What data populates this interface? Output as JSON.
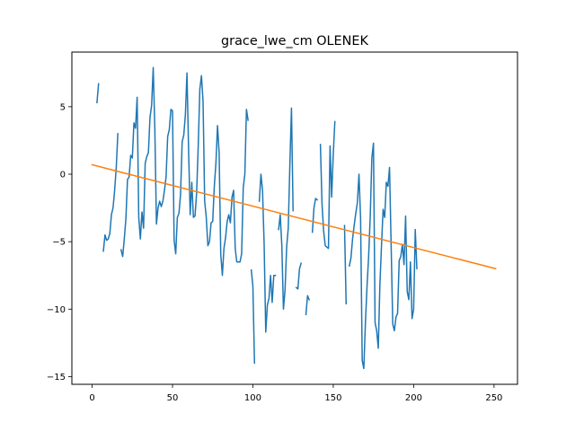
{
  "chart_data": {
    "type": "line",
    "title": "grace_lwe_cm OLENEK",
    "xlabel": "",
    "ylabel": "",
    "xlim": [
      -12.6,
      264.6
    ],
    "ylim": [
      -15.57,
      9.05
    ],
    "xticks": [
      0,
      50,
      100,
      150,
      200,
      250
    ],
    "yticks": [
      -15,
      -10,
      -5,
      0,
      5
    ],
    "ytick_labels": [
      "−15",
      "−10",
      "−5",
      "0",
      "5"
    ],
    "grid": false,
    "legend": "none",
    "series": [
      {
        "color": "#1f77b4",
        "points": [
          [
            3,
            5.3
          ],
          [
            4,
            6.7
          ],
          null,
          [
            7,
            -5.7
          ],
          [
            8,
            -4.5
          ],
          [
            9,
            -4.9
          ],
          [
            10,
            -4.8
          ],
          [
            11,
            -4.4
          ],
          [
            12,
            -3.0
          ],
          [
            13,
            -2.5
          ],
          [
            14,
            -1.2
          ],
          [
            15,
            0.5
          ],
          [
            16,
            3.0
          ],
          null,
          [
            18,
            -5.6
          ],
          [
            19,
            -6.1
          ],
          [
            20,
            -4.8
          ],
          [
            21,
            -3.3
          ],
          [
            22,
            -0.4
          ],
          [
            23,
            -0.2
          ],
          [
            24,
            1.4
          ],
          [
            25,
            1.2
          ],
          [
            26,
            3.8
          ],
          [
            27,
            3.4
          ],
          [
            28,
            5.7
          ],
          [
            29,
            -3.2
          ],
          [
            30,
            -4.8
          ],
          [
            31,
            -2.8
          ],
          [
            32,
            -4.0
          ],
          [
            33,
            0.8
          ],
          [
            34,
            1.3
          ],
          [
            35,
            1.6
          ],
          [
            36,
            4.2
          ],
          [
            37,
            5.1
          ],
          [
            38,
            7.9
          ],
          [
            39,
            3.4
          ],
          [
            40,
            -3.7
          ],
          [
            41,
            -2.5
          ],
          [
            42,
            -2.0
          ],
          [
            43,
            -2.4
          ],
          [
            44,
            -2.0
          ],
          [
            45,
            -1.2
          ],
          [
            46,
            -0.2
          ],
          [
            47,
            2.8
          ],
          [
            48,
            3.3
          ],
          [
            49,
            4.8
          ],
          [
            50,
            4.7
          ],
          [
            51,
            -4.9
          ],
          [
            52,
            -5.9
          ],
          [
            53,
            -3.2
          ],
          [
            54,
            -2.9
          ],
          [
            55,
            -1.5
          ],
          [
            56,
            2.4
          ],
          [
            57,
            2.9
          ],
          [
            58,
            4.4
          ],
          [
            59,
            7.5
          ],
          [
            60,
            1.8
          ],
          [
            61,
            -3.0
          ],
          [
            62,
            -0.6
          ],
          [
            63,
            -3.2
          ],
          [
            64,
            -3.1
          ],
          [
            65,
            -1.4
          ],
          [
            66,
            2.1
          ],
          [
            67,
            6.3
          ],
          [
            68,
            7.3
          ],
          [
            69,
            5.4
          ],
          [
            70,
            -2.0
          ],
          [
            71,
            -3.2
          ],
          [
            72,
            -5.3
          ],
          [
            73,
            -5.0
          ],
          [
            74,
            -3.6
          ],
          [
            75,
            -3.5
          ],
          [
            76,
            -0.9
          ],
          [
            77,
            0.8
          ],
          [
            78,
            3.6
          ],
          [
            79,
            1.6
          ],
          [
            80,
            -5.9
          ],
          [
            81,
            -7.5
          ],
          [
            82,
            -5.5
          ],
          [
            83,
            -4.7
          ],
          [
            84,
            -3.5
          ],
          [
            85,
            -3.0
          ],
          [
            86,
            -3.6
          ],
          [
            87,
            -1.7
          ],
          [
            88,
            -1.2
          ],
          [
            89,
            -5.5
          ],
          [
            90,
            -6.5
          ],
          [
            91,
            -6.5
          ],
          [
            92,
            -6.5
          ],
          [
            93,
            -5.9
          ],
          [
            94,
            -1.0
          ],
          [
            95,
            0.0
          ],
          [
            96,
            4.8
          ],
          [
            97,
            4.0
          ],
          null,
          [
            99,
            -7.1
          ],
          [
            100,
            -8.3
          ],
          [
            101,
            -14.0
          ],
          null,
          [
            104,
            -2.0
          ],
          [
            105,
            0.0
          ],
          [
            106,
            -1.2
          ],
          [
            107,
            -5.2
          ],
          [
            108,
            -11.7
          ],
          [
            109,
            -9.7
          ],
          [
            110,
            -9.2
          ],
          [
            111,
            -7.5
          ],
          [
            112,
            -9.5
          ],
          [
            113,
            -7.5
          ],
          [
            114,
            -7.5
          ],
          null,
          [
            116,
            -4.1
          ],
          [
            117,
            -3.0
          ],
          [
            118,
            -5.3
          ],
          [
            119,
            -10.0
          ],
          [
            120,
            -8.6
          ],
          [
            121,
            -5.4
          ],
          [
            122,
            -4.0
          ],
          [
            123,
            0.7
          ],
          [
            124,
            4.9
          ],
          [
            125,
            -2.7
          ],
          null,
          [
            127,
            -8.4
          ],
          [
            128,
            -8.5
          ],
          [
            129,
            -7.0
          ],
          [
            130,
            -6.6
          ],
          null,
          [
            133,
            -10.4
          ],
          [
            134,
            -9.0
          ],
          [
            135,
            -9.3
          ],
          null,
          [
            137,
            -4.3
          ],
          [
            138,
            -2.5
          ],
          [
            139,
            -1.8
          ],
          [
            140,
            -1.9
          ],
          null,
          [
            142,
            2.2
          ],
          [
            143,
            -2.2
          ],
          [
            144,
            -4.2
          ],
          [
            145,
            -5.3
          ],
          [
            146,
            -5.4
          ],
          [
            147,
            -5.5
          ],
          [
            148,
            2.1
          ],
          [
            149,
            -1.7
          ],
          [
            150,
            1.5
          ],
          [
            151,
            3.9
          ],
          null,
          [
            157,
            -3.8
          ],
          [
            158,
            -9.6
          ],
          null,
          [
            160,
            -6.8
          ],
          [
            161,
            -6.2
          ],
          [
            162,
            -4.8
          ],
          [
            163,
            -3.8
          ],
          [
            164,
            -2.9
          ],
          [
            165,
            -2.1
          ],
          [
            166,
            0.0
          ],
          [
            167,
            -3.3
          ],
          [
            168,
            -13.8
          ],
          [
            169,
            -14.4
          ],
          [
            170,
            -11.0
          ],
          [
            171,
            -8.3
          ],
          [
            172,
            -6.1
          ],
          [
            173,
            -3.1
          ],
          [
            174,
            1.2
          ],
          [
            175,
            2.3
          ],
          [
            176,
            -11.0
          ],
          [
            177,
            -11.6
          ],
          [
            178,
            -12.9
          ],
          [
            179,
            -8.2
          ],
          [
            180,
            -5.3
          ],
          [
            181,
            -2.6
          ],
          [
            182,
            -3.2
          ],
          [
            183,
            -0.6
          ],
          [
            184,
            -0.9
          ],
          [
            185,
            0.5
          ],
          [
            186,
            -5.3
          ],
          [
            187,
            -11.1
          ],
          [
            188,
            -11.6
          ],
          [
            189,
            -10.6
          ],
          [
            190,
            -10.3
          ],
          [
            191,
            -6.4
          ],
          [
            192,
            -6.1
          ],
          [
            193,
            -5.2
          ],
          [
            194,
            -6.7
          ],
          [
            195,
            -3.1
          ],
          [
            196,
            -8.7
          ],
          [
            197,
            -9.3
          ],
          [
            198,
            -6.5
          ],
          [
            199,
            -10.7
          ],
          [
            200,
            -10.0
          ],
          [
            201,
            -4.1
          ],
          [
            202,
            -7.0
          ]
        ]
      },
      {
        "color": "#ff7f0e",
        "points": [
          [
            0,
            0.7
          ],
          [
            251,
            -7.0
          ]
        ]
      }
    ]
  }
}
